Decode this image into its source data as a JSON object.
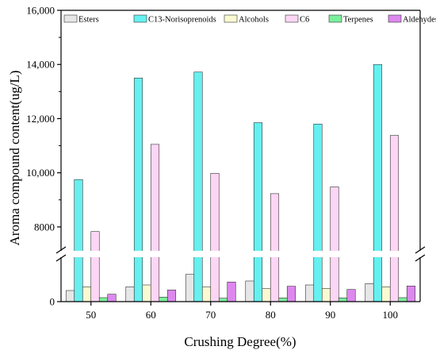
{
  "chart_data": {
    "type": "bar",
    "title": "",
    "xlabel": "Crushing Degree(%)",
    "ylabel": "Aroma compound content(ug/L)",
    "categories": [
      "50",
      "60",
      "70",
      "80",
      "90",
      "100"
    ],
    "y_axis_break": true,
    "y_ticks_upper": [
      "8000",
      "10,000",
      "12,000",
      "14,000",
      "16,000"
    ],
    "y_ticks_lower": [
      "0"
    ],
    "legend_position": "top",
    "grid": false,
    "series": [
      {
        "name": "Esters",
        "color": "#e6e6e6",
        "values": [
          420,
          560,
          1030,
          780,
          630,
          680
        ]
      },
      {
        "name": "C13-Norisoprenoids",
        "color": "#66f0f0",
        "values": [
          9750,
          13500,
          13720,
          11850,
          11800,
          14000
        ]
      },
      {
        "name": "Alcohols",
        "color": "#fafad2",
        "values": [
          560,
          630,
          550,
          490,
          500,
          560
        ]
      },
      {
        "name": "C6",
        "color": "#fcd6f4",
        "values": [
          7830,
          11050,
          9980,
          9230,
          9480,
          11380
        ]
      },
      {
        "name": "Terpenes",
        "color": "#7bef9c",
        "values": [
          150,
          170,
          130,
          140,
          140,
          150
        ]
      },
      {
        "name": "Aldehydes",
        "color": "#dd88ee",
        "values": [
          280,
          440,
          740,
          580,
          460,
          590
        ]
      }
    ]
  }
}
